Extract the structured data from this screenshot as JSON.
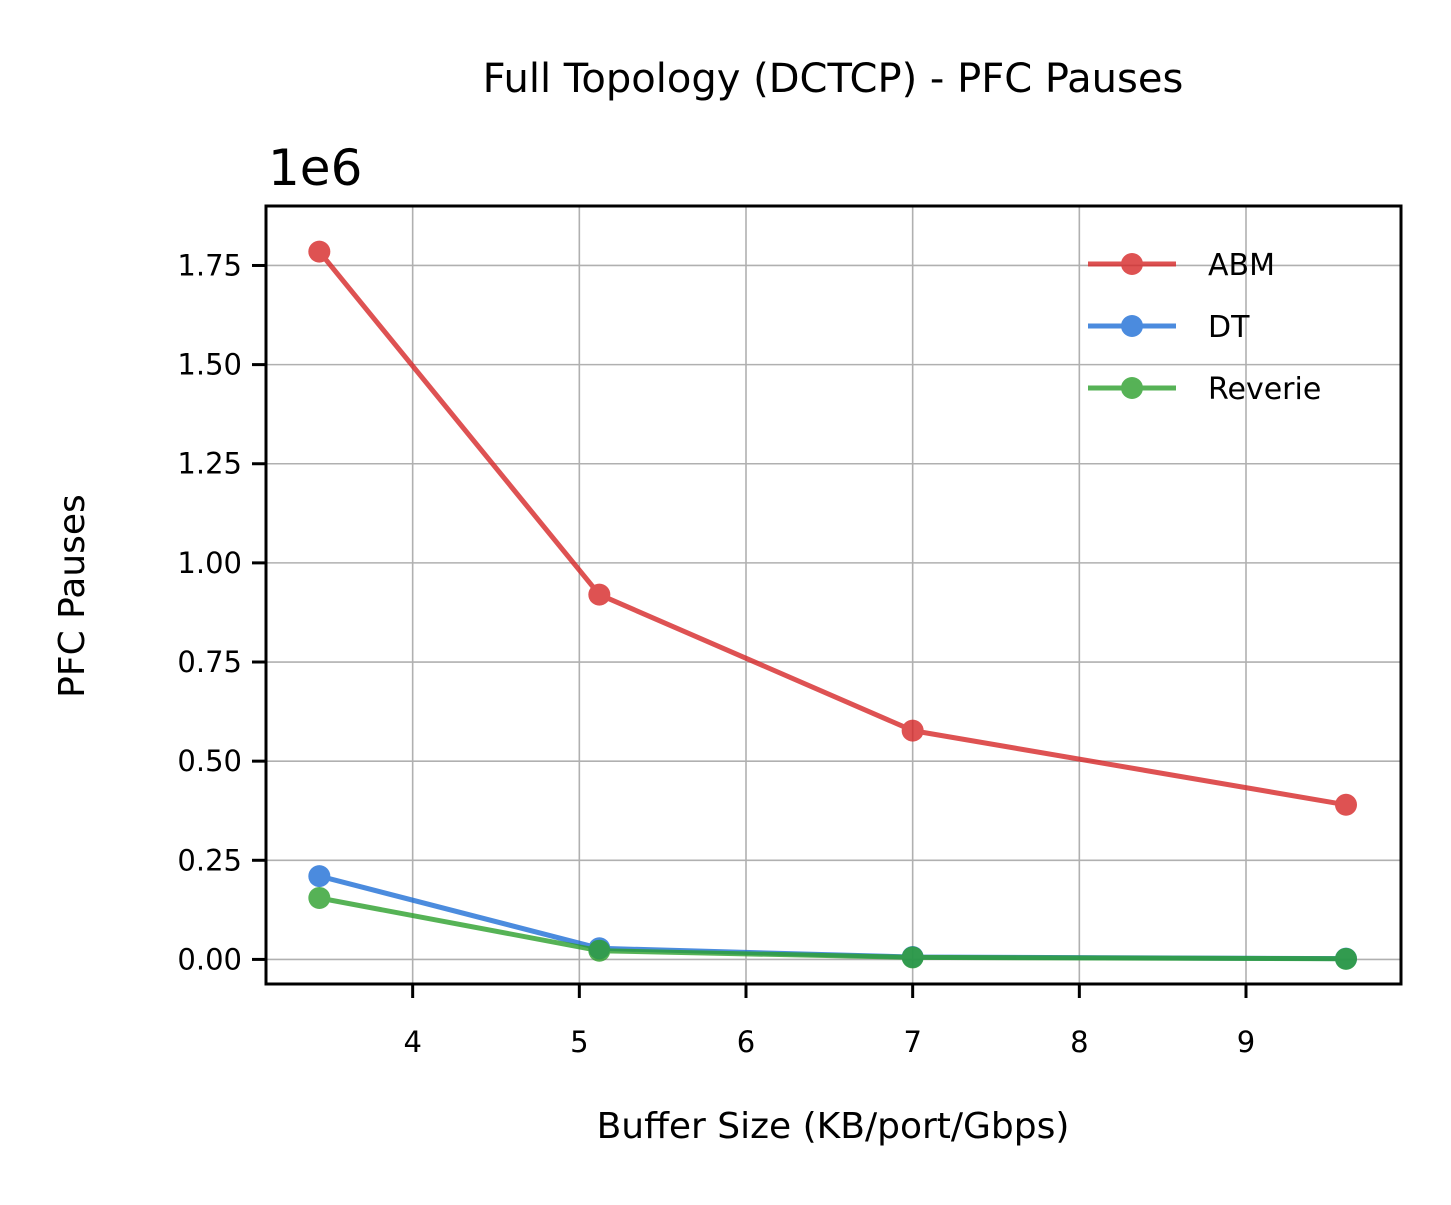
{
  "chart_data": {
    "type": "line",
    "title": "Full Topology (DCTCP) - PFC Pauses",
    "xlabel": "Buffer Size (KB/port/Gbps)",
    "ylabel": "PFC Pauses",
    "y_offset_label": "1e6",
    "y_multiplier": 1000000,
    "xlim": [
      3.12,
      9.93
    ],
    "ylim": [
      -62000,
      1900000
    ],
    "x_ticks": [
      4,
      5,
      6,
      7,
      8,
      9
    ],
    "x_tick_labels": [
      "4",
      "5",
      "6",
      "7",
      "8",
      "9"
    ],
    "y_ticks": [
      0,
      250000,
      500000,
      750000,
      1000000,
      1250000,
      1500000,
      1750000
    ],
    "y_tick_labels": [
      "0.00",
      "0.25",
      "0.50",
      "0.75",
      "1.00",
      "1.25",
      "1.50",
      "1.75"
    ],
    "grid": true,
    "legend_position": "top-right",
    "x": [
      3.44,
      5.12,
      7.0,
      9.6
    ],
    "series": [
      {
        "name": "ABM",
        "color": "#d62728",
        "values": [
          1785000,
          920000,
          577000,
          390000
        ]
      },
      {
        "name": "DT",
        "color": "#1f6fd6",
        "values": [
          210000,
          28000,
          6000,
          2000
        ]
      },
      {
        "name": "Reverie",
        "color": "#2ca02c",
        "values": [
          155000,
          22000,
          5000,
          1500
        ]
      }
    ]
  }
}
